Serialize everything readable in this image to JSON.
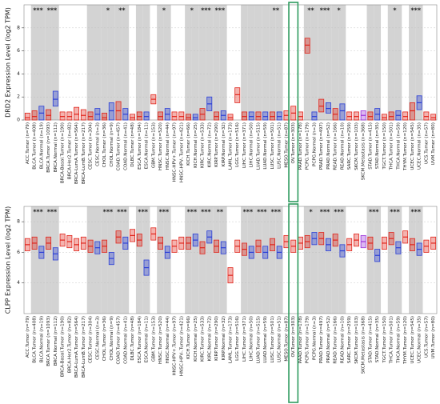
{
  "chart_data": [
    {
      "type": "box",
      "y_label": "DRD2 Expression Level (log2 TPM)",
      "categories": [
        "ACC.Tumor (n=79)",
        "BLCA.Tumor (n=408)",
        "BLCA.Normal (n=19)",
        "BRCA.Tumor (n=1093)",
        "BRCA.Normal (n=112)",
        "BRCA-Basal.Tumor (n=190)",
        "BRCA-Her2.Tumor (n=82)",
        "BRCA-LumA.Tumor (n=564)",
        "BRCA-LumB.Tumor (n=217)",
        "CESC.Tumor (n=304)",
        "CESC.Normal (n=3)",
        "CHOL.Tumor (n=36)",
        "CHOL.Normal (n=9)",
        "COAD.Tumor (n=457)",
        "COAD.Normal (n=41)",
        "DLBC.Tumor (n=48)",
        "ESCA.Tumor (n=184)",
        "ESCA.Normal (n=11)",
        "GBM.Tumor (n=153)",
        "HNSC.Tumor (n=520)",
        "HNSC.Normal (n=44)",
        "HNSC-HPV+.Tumor (n=97)",
        "HNSC-HPV-.Tumor (n=421)",
        "KICH.Tumor (n=66)",
        "KICH.Normal (n=25)",
        "KIRC.Tumor (n=533)",
        "KIRC.Normal (n=72)",
        "KIRP.Tumor (n=290)",
        "KIRP.Normal (n=32)",
        "LAML.Tumor (n=173)",
        "LGG.Tumor (n=516)",
        "LIHC.Tumor (n=371)",
        "LIHC.Normal (n=50)",
        "LUAD.Tumor (n=515)",
        "LUAD.Normal (n=59)",
        "LUSC.Tumor (n=501)",
        "LUSC.Normal (n=51)",
        "MESO.Tumor (n=87)",
        "OV.Tumor (n=303)",
        "PAAD.Tumor (n=178)",
        "PCPG.Tumor (n=179)",
        "PCPG.Normal (n=3)",
        "PRAD.Tumor (n=497)",
        "PRAD.Normal (n=52)",
        "READ.Tumor (n=166)",
        "READ.Normal (n=10)",
        "SARC.Tumor (n=259)",
        "SKCM.Tumor (n=103)",
        "SKCM.Metastasis (n=368)",
        "STAD.Tumor (n=415)",
        "STAD.Normal (n=35)",
        "TGCT.Tumor (n=150)",
        "THCA.Tumor (n=501)",
        "THCA.Normal (n=59)",
        "THYM.Tumor (n=120)",
        "UCEC.Tumor (n=545)",
        "UCEC.Normal (n=35)",
        "UCS.Tumor (n=57)",
        "UVM.Tumor (n=80)"
      ],
      "values": [
        0.2,
        0.3,
        0.6,
        0.4,
        1.8,
        0.3,
        0.3,
        0.5,
        0.4,
        0.3,
        0.5,
        0.2,
        0.8,
        0.8,
        0.5,
        0.2,
        0.3,
        0.3,
        1.8,
        0.3,
        0.5,
        0.3,
        0.3,
        0.2,
        0.2,
        0.5,
        1.4,
        0.3,
        0.4,
        0.2,
        2.2,
        0.3,
        0.3,
        0.3,
        0.3,
        0.3,
        0.3,
        0.4,
        0.6,
        0.3,
        6.5,
        0.3,
        1.2,
        1.0,
        0.5,
        0.8,
        0.3,
        0.3,
        0.4,
        0.3,
        0.5,
        0.2,
        0.3,
        0.4,
        0.3,
        0.8,
        1.5,
        0.3,
        0.2
      ],
      "q1": [
        0,
        0,
        0,
        0,
        1.2,
        0,
        0,
        0,
        0,
        0,
        0,
        0,
        0,
        0,
        0,
        0,
        0,
        0,
        1.4,
        0,
        0,
        0,
        0,
        0,
        0,
        0,
        0.8,
        0,
        0,
        0,
        1.5,
        0,
        0,
        0,
        0,
        0,
        0,
        0,
        0,
        0,
        5.8,
        0,
        0.7,
        0.6,
        0,
        0,
        0,
        0,
        0,
        0,
        0,
        0,
        0,
        0,
        0,
        0,
        0.9,
        0,
        0
      ],
      "q3": [
        0.6,
        0.8,
        1.2,
        0.9,
        2.5,
        0.7,
        0.7,
        1.1,
        0.9,
        0.7,
        1.0,
        0.6,
        1.5,
        1.6,
        1.0,
        0.5,
        0.7,
        0.7,
        2.2,
        0.7,
        1.0,
        0.7,
        0.7,
        0.5,
        0.5,
        1.0,
        2.0,
        0.7,
        0.8,
        0.5,
        2.8,
        0.7,
        0.7,
        0.7,
        0.7,
        0.7,
        0.7,
        0.8,
        1.2,
        0.7,
        7.1,
        0.7,
        1.8,
        1.5,
        1.0,
        1.4,
        0.7,
        0.7,
        0.8,
        0.7,
        1.0,
        0.5,
        0.7,
        0.8,
        0.7,
        1.5,
        2.1,
        0.7,
        0.5
      ],
      "significance": [
        null,
        null,
        "***",
        null,
        "***",
        null,
        null,
        null,
        null,
        null,
        null,
        null,
        "*",
        null,
        "**",
        null,
        null,
        null,
        null,
        null,
        "*",
        null,
        null,
        null,
        "*",
        null,
        "***",
        null,
        "***",
        null,
        null,
        null,
        null,
        null,
        null,
        null,
        "**",
        null,
        null,
        null,
        null,
        "**",
        null,
        "***",
        null,
        "*",
        null,
        null,
        null,
        null,
        null,
        null,
        null,
        "*",
        null,
        null,
        "***",
        null,
        null
      ],
      "ylim": [
        0,
        10
      ],
      "yticks": [
        0,
        2,
        4,
        6,
        8
      ],
      "grid": true,
      "highlight_index": 38,
      "tumor_color": "#e0241b",
      "normal_color": "#2b3fd6",
      "metastasis_color": "#9b30d9",
      "highlight_color": "#2e9b5f"
    },
    {
      "type": "box",
      "y_label": "CLPP Expression Level (log2 TPM)",
      "categories": [
        "ACC.Tumor (n=79)",
        "BLCA.Tumor (n=408)",
        "BLCA.Normal (n=19)",
        "BRCA.Tumor (n=1093)",
        "BRCA.Normal (n=112)",
        "BRCA-Basal.Tumor (n=190)",
        "BRCA-Her2.Tumor (n=82)",
        "BRCA-LumA.Tumor (n=564)",
        "BRCA-LumB.Tumor (n=217)",
        "CESC.Tumor (n=304)",
        "CESC.Normal (n=3)",
        "CHOL.Tumor (n=36)",
        "CHOL.Normal (n=9)",
        "COAD.Tumor (n=457)",
        "COAD.Normal (n=41)",
        "DLBC.Tumor (n=48)",
        "ESCA.Tumor (n=184)",
        "ESCA.Normal (n=11)",
        "GBM.Tumor (n=153)",
        "HNSC.Tumor (n=520)",
        "HNSC.Normal (n=44)",
        "HNSC-HPV+.Tumor (n=97)",
        "HNSC-HPV-.Tumor (n=421)",
        "KICH.Tumor (n=66)",
        "KICH.Normal (n=25)",
        "KIRC.Tumor (n=533)",
        "KIRC.Normal (n=72)",
        "KIRP.Tumor (n=290)",
        "KIRP.Normal (n=32)",
        "LAML.Tumor (n=173)",
        "LGG.Tumor (n=516)",
        "LIHC.Tumor (n=371)",
        "LIHC.Normal (n=50)",
        "LUAD.Tumor (n=515)",
        "LUAD.Normal (n=59)",
        "LUSC.Tumor (n=501)",
        "LUSC.Normal (n=51)",
        "MESO.Tumor (n=87)",
        "OV.Tumor (n=303)",
        "PAAD.Tumor (n=178)",
        "PCPG.Tumor (n=179)",
        "PCPG.Normal (n=3)",
        "PRAD.Tumor (n=497)",
        "PRAD.Normal (n=52)",
        "READ.Tumor (n=166)",
        "READ.Normal (n=10)",
        "SARC.Tumor (n=259)",
        "SKCM.Tumor (n=103)",
        "SKCM.Metastasis (n=368)",
        "STAD.Tumor (n=415)",
        "STAD.Normal (n=35)",
        "TGCT.Tumor (n=150)",
        "THCA.Tumor (n=501)",
        "THCA.Normal (n=59)",
        "THYM.Tumor (n=120)",
        "UCEC.Tumor (n=545)",
        "UCEC.Normal (n=35)",
        "UCS.Tumor (n=57)",
        "UVM.Tumor (n=80)"
      ],
      "values": [
        6.5,
        6.6,
        6.0,
        6.6,
        5.9,
        6.8,
        6.7,
        6.5,
        6.6,
        6.4,
        6.3,
        6.4,
        5.6,
        7.0,
        6.6,
        7.1,
        6.8,
        5.0,
        7.2,
        6.6,
        6.0,
        6.4,
        6.6,
        6.6,
        6.8,
        6.3,
        7.0,
        6.4,
        6.3,
        4.5,
        6.4,
        6.2,
        6.0,
        6.4,
        6.0,
        6.5,
        6.0,
        6.7,
        6.4,
        6.6,
        6.7,
        6.9,
        6.9,
        6.5,
        6.8,
        6.1,
        6.5,
        6.8,
        6.7,
        6.6,
        5.8,
        6.6,
        6.9,
        6.3,
        7.0,
        6.5,
        6.2,
        6.4,
        6.6
      ],
      "q1": [
        6.1,
        6.2,
        5.6,
        6.2,
        5.5,
        6.4,
        6.3,
        6.1,
        6.2,
        6.0,
        5.9,
        6.0,
        5.2,
        6.6,
        6.2,
        6.7,
        6.4,
        4.5,
        6.8,
        6.2,
        5.6,
        6.0,
        6.2,
        6.2,
        6.4,
        5.9,
        6.6,
        6.0,
        5.9,
        4.0,
        6.0,
        5.8,
        5.6,
        6.0,
        5.6,
        6.1,
        5.6,
        6.3,
        6.0,
        6.2,
        6.3,
        6.5,
        6.5,
        6.1,
        6.4,
        5.7,
        6.1,
        6.4,
        6.3,
        6.2,
        5.4,
        6.2,
        6.5,
        5.9,
        6.6,
        6.1,
        5.8,
        6.0,
        6.2
      ],
      "q3": [
        6.9,
        7.0,
        6.4,
        7.0,
        6.3,
        7.2,
        7.1,
        6.9,
        7.0,
        6.8,
        6.7,
        6.8,
        6.0,
        7.4,
        7.0,
        7.5,
        7.2,
        5.5,
        7.6,
        7.0,
        6.4,
        6.8,
        7.0,
        7.0,
        7.2,
        6.7,
        7.4,
        6.8,
        6.7,
        5.0,
        6.8,
        6.6,
        6.4,
        6.8,
        6.4,
        6.9,
        6.4,
        7.1,
        6.8,
        7.0,
        7.1,
        7.3,
        7.3,
        6.9,
        7.2,
        6.5,
        6.9,
        7.2,
        7.1,
        7.0,
        6.2,
        7.0,
        7.3,
        6.7,
        7.4,
        6.9,
        6.6,
        6.8,
        7.0
      ],
      "significance": [
        null,
        null,
        "***",
        null,
        "***",
        null,
        null,
        null,
        null,
        null,
        null,
        null,
        "***",
        null,
        "***",
        null,
        null,
        "***",
        null,
        null,
        "***",
        null,
        null,
        null,
        "***",
        null,
        "***",
        null,
        "**",
        null,
        null,
        null,
        "***",
        null,
        "***",
        null,
        "***",
        null,
        null,
        null,
        null,
        "*",
        null,
        "***",
        null,
        "***",
        null,
        null,
        null,
        null,
        "***",
        null,
        null,
        "***",
        null,
        null,
        "***",
        null,
        null
      ],
      "ylim": [
        2,
        9
      ],
      "yticks": [
        4,
        6,
        8
      ],
      "grid": true,
      "highlight_index": 38,
      "tumor_color": "#e0241b",
      "normal_color": "#2b3fd6",
      "metastasis_color": "#9b30d9",
      "highlight_color": "#2e9b5f"
    }
  ]
}
